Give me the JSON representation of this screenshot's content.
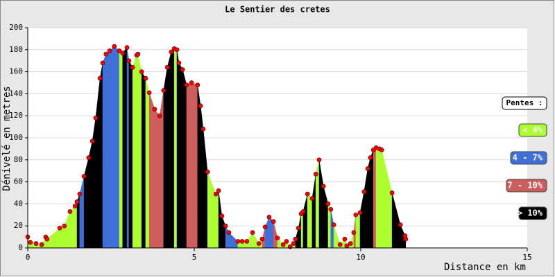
{
  "chart_data": {
    "type": "slope_profile",
    "title": "Le Sentier des cretes",
    "x_label": "Distance en km",
    "y_label": "Dénivelé en metres",
    "xlim": [
      0,
      15
    ],
    "xticks": [
      0,
      5,
      10,
      15
    ],
    "ylim": [
      0,
      200
    ],
    "yticks": [
      0,
      20,
      40,
      60,
      80,
      100,
      120,
      140,
      160,
      180,
      200
    ],
    "grid": true,
    "marker_color": "#ff0000",
    "x": [
      0,
      0.08,
      0.25,
      0.42,
      0.54,
      0.58,
      0.96,
      1.1,
      1.27,
      1.42,
      1.48,
      1.56,
      1.69,
      1.83,
      1.94,
      2.04,
      2.17,
      2.25,
      2.35,
      2.46,
      2.6,
      2.75,
      2.85,
      2.98,
      3.04,
      3.15,
      3.27,
      3.31,
      3.42,
      3.54,
      3.65,
      3.81,
      3.96,
      4.08,
      4.19,
      4.31,
      4.4,
      4.48,
      4.54,
      4.65,
      4.77,
      4.92,
      5.1,
      5.19,
      5.27,
      5.4,
      5.65,
      5.73,
      5.83,
      5.94,
      6.04,
      6.31,
      6.44,
      6.58,
      6.75,
      6.94,
      7.04,
      7.13,
      7.25,
      7.38,
      7.5,
      7.67,
      7.77,
      7.88,
      7.98,
      8.04,
      8.13,
      8.21,
      8.27,
      8.4,
      8.54,
      8.65,
      8.75,
      8.88,
      9.02,
      9.1,
      9.19,
      9.38,
      9.52,
      9.58,
      9.69,
      9.79,
      9.85,
      9.98,
      10.1,
      10.21,
      10.29,
      10.38,
      10.46,
      10.56,
      10.63,
      10.94,
      11.19,
      11.33,
      11.35
    ],
    "values": [
      10,
      5,
      4,
      3,
      10,
      8,
      18,
      20,
      33,
      38,
      42,
      49,
      65,
      82,
      97,
      118,
      154,
      168,
      176,
      179,
      183,
      179,
      177,
      182,
      170,
      164,
      175,
      176,
      160,
      154,
      141,
      126,
      120,
      143,
      164,
      178,
      181,
      180,
      168,
      162,
      148,
      150,
      148,
      129,
      108,
      69,
      49,
      52,
      29,
      20,
      14,
      6,
      6,
      6,
      14,
      4,
      8,
      19,
      28,
      24,
      9,
      3,
      6,
      1,
      4,
      8,
      18,
      31,
      33,
      49,
      45,
      67,
      80,
      56,
      40,
      35,
      21,
      3,
      8,
      2,
      4,
      14,
      30,
      32,
      51,
      72,
      82,
      89,
      91,
      90,
      89,
      50,
      21,
      11,
      8
    ],
    "segment_colors": [
      "#adff2f",
      "#adff2f",
      "#adff2f",
      "#adff2f",
      "#adff2f",
      "#adff2f",
      "#adff2f",
      "#adff2f",
      "#adff2f",
      "#adff2f",
      "#000000",
      "#3f6fd8",
      "#000000",
      "#000000",
      "#000000",
      "#000000",
      "#000000",
      "#3f6fd8",
      "#3f6fd8",
      "#3f6fd8",
      "#3f6fd8",
      "#adff2f",
      "#000000",
      "#3f6fd8",
      "#000000",
      "#adff2f",
      "#adff2f",
      "#adff2f",
      "#000000",
      "#adff2f",
      "#cd5c5c",
      "#cd5c5c",
      "#cd5c5c",
      "#000000",
      "#000000",
      "#000000",
      "#adff2f",
      "#000000",
      "#000000",
      "#000000",
      "#cd5c5c",
      "#cd5c5c",
      "#000000",
      "#000000",
      "#000000",
      "#adff2f",
      "#adff2f",
      "#000000",
      "#000000",
      "#3f6fd8",
      "#3f6fd8",
      "#adff2f",
      "#adff2f",
      "#adff2f",
      "#adff2f",
      "#adff2f",
      "#cd5c5c",
      "#3f6fd8",
      "#3f6fd8",
      "#cd5c5c",
      "#adff2f",
      "#adff2f",
      "#adff2f",
      "#adff2f",
      "#adff2f",
      "#000000",
      "#000000",
      "#adff2f",
      "#000000",
      "#adff2f",
      "#000000",
      "#adff2f",
      "#000000",
      "#000000",
      "#adff2f",
      "#3f6fd8",
      "#adff2f",
      "#adff2f",
      "#adff2f",
      "#adff2f",
      "#adff2f",
      "#cd5c5c",
      "#adff2f",
      "#000000",
      "#000000",
      "#000000",
      "#000000",
      "#cd5c5c",
      "#adff2f",
      "#adff2f",
      "#adff2f",
      "#000000",
      "#000000",
      "#000000"
    ],
    "legend": {
      "title": "Pentes :",
      "items": [
        {
          "label": "< 4%",
          "color": "#adff2f"
        },
        {
          "label": "4 - 7%",
          "color": "#3f6fd8"
        },
        {
          "label": "7 - 10%",
          "color": "#cd5c5c"
        },
        {
          "label": "> 10%",
          "color": "#000000"
        }
      ]
    }
  }
}
